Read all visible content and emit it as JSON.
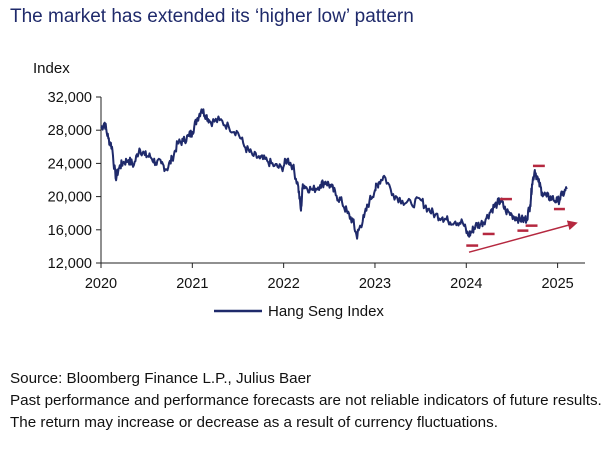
{
  "title": "The market has extended its ‘higher low’ pattern",
  "source_line": "Source: Bloomberg Finance L.P., Julius Baer",
  "disclaimer": "Past performance and performance forecasts are not reliable indicators of future results. The return may increase or decrease as a result of currency fluctuations.",
  "colors": {
    "series": "#1f2a6b",
    "annotation": "#b5283f",
    "title": "#1f2a6b"
  },
  "chart_data": {
    "type": "line",
    "title": "The market has extended its ‘higher low’ pattern",
    "ylabel": "Index",
    "xlabel": "",
    "ylim": [
      12000,
      32000
    ],
    "xlim": [
      2020.0,
      2025.3
    ],
    "yticks": [
      12000,
      16000,
      20000,
      24000,
      28000,
      32000
    ],
    "ytick_labels": [
      "12,000",
      "16,000",
      "20,000",
      "24,000",
      "28,000",
      "32,000"
    ],
    "xticks": [
      2020,
      2021,
      2022,
      2023,
      2024,
      2025
    ],
    "xtick_labels": [
      "2020",
      "2021",
      "2022",
      "2023",
      "2024",
      "2025"
    ],
    "grid": false,
    "legend": "bottom-center",
    "series": [
      {
        "name": "Hang Seng Index",
        "x": [
          2020.0,
          2020.04,
          2020.08,
          2020.12,
          2020.16,
          2020.2,
          2020.24,
          2020.3,
          2020.36,
          2020.42,
          2020.48,
          2020.54,
          2020.6,
          2020.66,
          2020.72,
          2020.78,
          2020.84,
          2020.9,
          2020.96,
          2021.0,
          2021.05,
          2021.1,
          2021.15,
          2021.2,
          2021.3,
          2021.4,
          2021.5,
          2021.58,
          2021.66,
          2021.74,
          2021.82,
          2021.9,
          2021.98,
          2022.04,
          2022.1,
          2022.16,
          2022.19,
          2022.21,
          2022.25,
          2022.32,
          2022.4,
          2022.46,
          2022.52,
          2022.58,
          2022.64,
          2022.7,
          2022.76,
          2022.8,
          2022.83,
          2022.88,
          2022.94,
          2023.0,
          2023.04,
          2023.1,
          2023.2,
          2023.3,
          2023.4,
          2023.5,
          2023.58,
          2023.66,
          2023.74,
          2023.8,
          2023.88,
          2023.96,
          2024.02,
          2024.06,
          2024.1,
          2024.16,
          2024.22,
          2024.28,
          2024.34,
          2024.38,
          2024.43,
          2024.5,
          2024.56,
          2024.62,
          2024.66,
          2024.7,
          2024.72,
          2024.75,
          2024.79,
          2024.83,
          2024.88,
          2024.94,
          2025.0,
          2025.05,
          2025.1
        ],
        "values": [
          28200,
          28900,
          27000,
          26000,
          22200,
          23500,
          24100,
          24400,
          23800,
          25800,
          25000,
          24800,
          24100,
          24000,
          23300,
          24600,
          26400,
          26700,
          27300,
          27800,
          29300,
          30500,
          29800,
          29000,
          29200,
          28400,
          27700,
          25900,
          25000,
          24600,
          24300,
          23700,
          23400,
          24500,
          23700,
          21200,
          18300,
          21500,
          21100,
          20800,
          21400,
          21800,
          21200,
          20100,
          19300,
          18000,
          17000,
          15200,
          16200,
          17500,
          19500,
          20800,
          21700,
          22500,
          20300,
          19500,
          19100,
          19600,
          18500,
          17800,
          17500,
          17100,
          17000,
          16900,
          15300,
          15800,
          16500,
          16700,
          17400,
          18500,
          19200,
          19500,
          18300,
          17800,
          17400,
          17200,
          17300,
          19000,
          21500,
          23200,
          21800,
          20500,
          20000,
          19800,
          19400,
          20200,
          20900
        ]
      }
    ],
    "annotations": {
      "higher_low_levels": [
        {
          "x0": 2024.0,
          "x1": 2024.13,
          "y": 14100
        },
        {
          "x0": 2024.18,
          "x1": 2024.31,
          "y": 15500
        },
        {
          "x0": 2024.37,
          "x1": 2024.5,
          "y": 19700
        },
        {
          "x0": 2024.56,
          "x1": 2024.68,
          "y": 15900
        },
        {
          "x0": 2024.65,
          "x1": 2024.78,
          "y": 16500
        },
        {
          "x0": 2024.73,
          "x1": 2024.86,
          "y": 23700
        },
        {
          "x0": 2024.96,
          "x1": 2025.08,
          "y": 18500
        }
      ],
      "trend_arrow": {
        "x0": 2024.03,
        "y0": 13300,
        "x1": 2025.2,
        "y1": 16800
      }
    }
  }
}
